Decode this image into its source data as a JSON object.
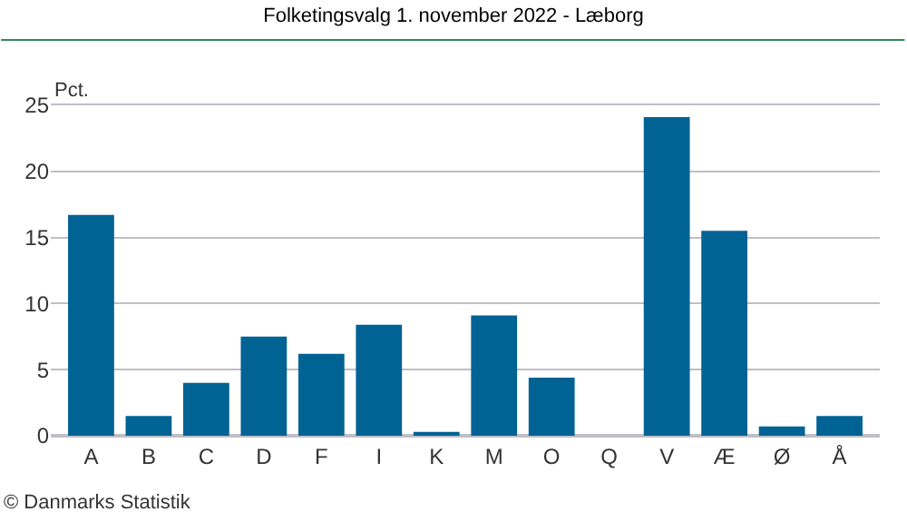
{
  "chart_data": {
    "type": "bar",
    "title": "Folketingsvalg 1. november 2022 - Læborg",
    "ylabel": "Pct.",
    "categories": [
      "A",
      "B",
      "C",
      "D",
      "F",
      "I",
      "K",
      "M",
      "O",
      "Q",
      "V",
      "Æ",
      "Ø",
      "Å"
    ],
    "values": [
      16.7,
      1.5,
      4.0,
      7.5,
      6.2,
      8.4,
      0.3,
      9.1,
      4.4,
      0,
      24.1,
      15.5,
      0.7,
      1.5
    ],
    "color": "#006394",
    "ylim": [
      0,
      25
    ],
    "yticks": [
      0,
      5,
      10,
      15,
      20,
      25
    ],
    "grid": "y",
    "annotations": [
      "© Danmarks Statistik"
    ]
  }
}
